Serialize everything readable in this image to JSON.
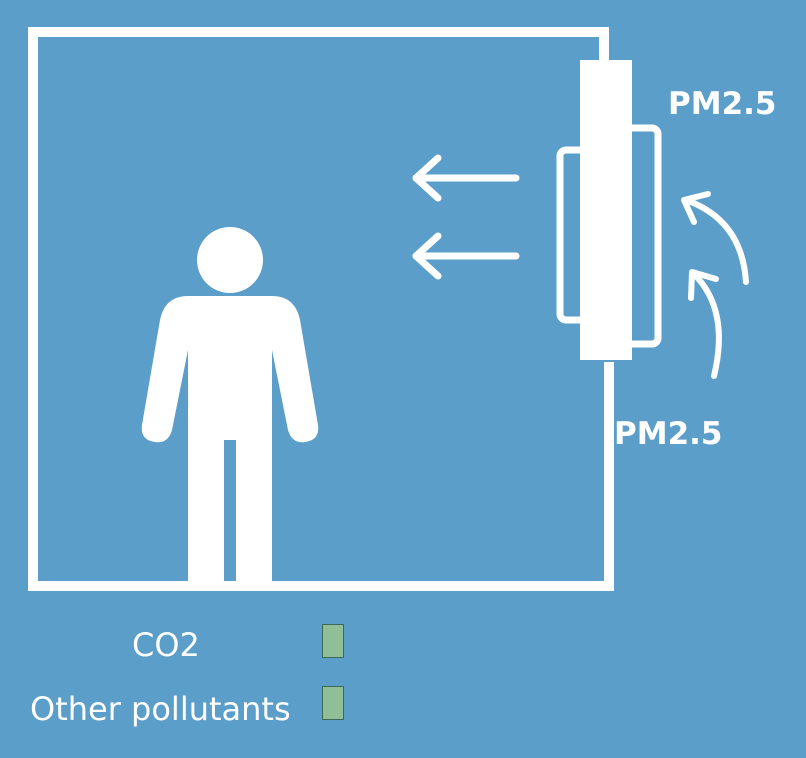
{
  "labels": {
    "pm_top": "PM2.5",
    "pm_bottom": "PM2.5"
  },
  "legend": {
    "items": [
      {
        "label": "CO2",
        "color": "#8fbf96"
      },
      {
        "label": "Other pollutants",
        "color": "#8fbf96"
      }
    ]
  },
  "colors": {
    "background": "#5b9ec9",
    "foreground": "#ffffff"
  }
}
